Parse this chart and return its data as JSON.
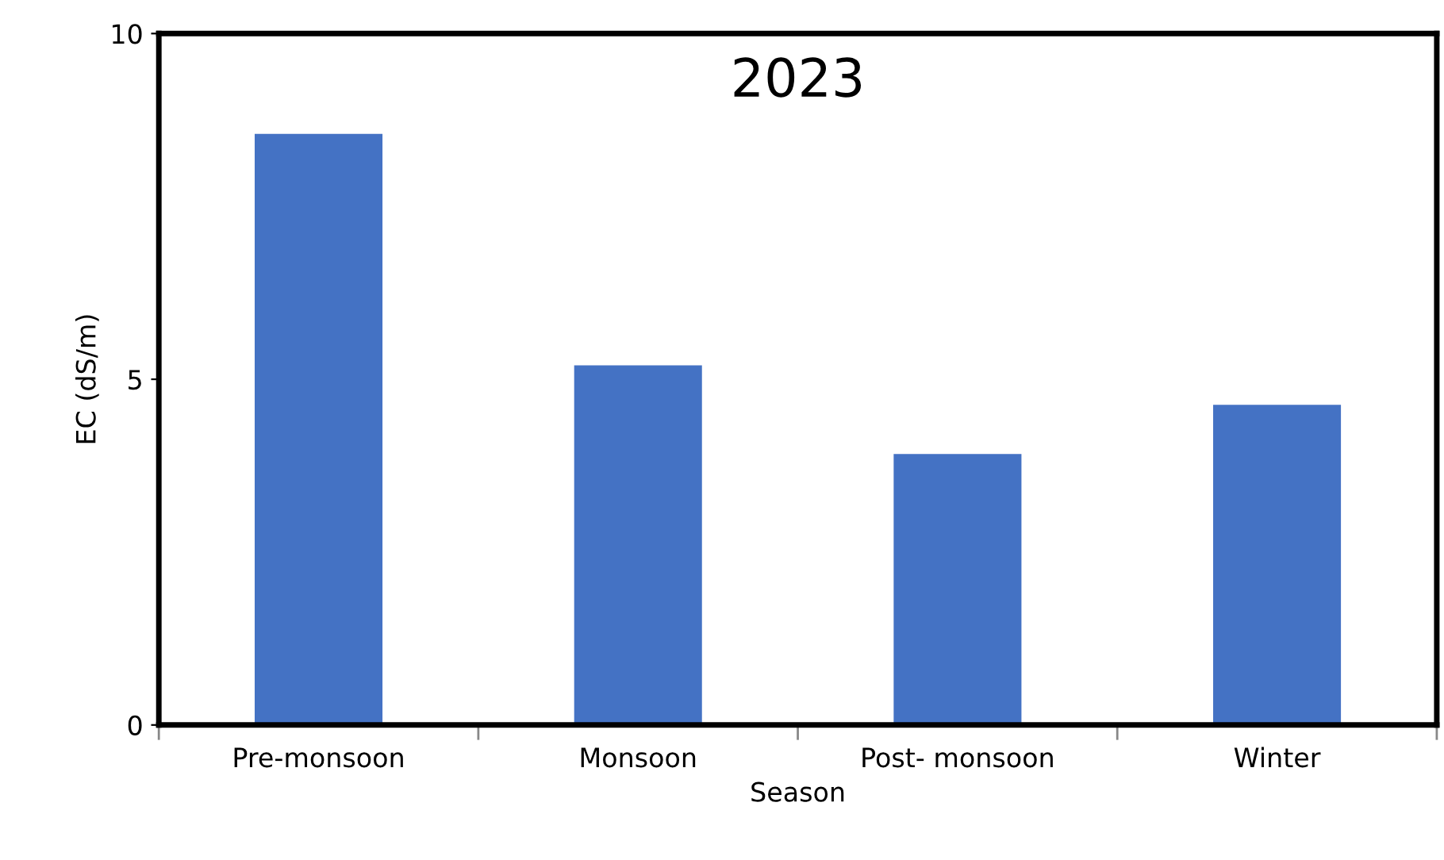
{
  "chart_data": {
    "type": "bar",
    "title": "2023",
    "xlabel": "Season",
    "ylabel": "EC (dS/m)",
    "categories": [
      "Pre-monsoon",
      "Monsoon",
      "Post- monsoon",
      "Winter"
    ],
    "values": [
      8.55,
      5.2,
      3.92,
      4.63
    ],
    "color": "#4472c4",
    "ylim": [
      0,
      10
    ],
    "yticks": [
      0,
      5,
      10
    ],
    "grid": false,
    "legend": false
  }
}
